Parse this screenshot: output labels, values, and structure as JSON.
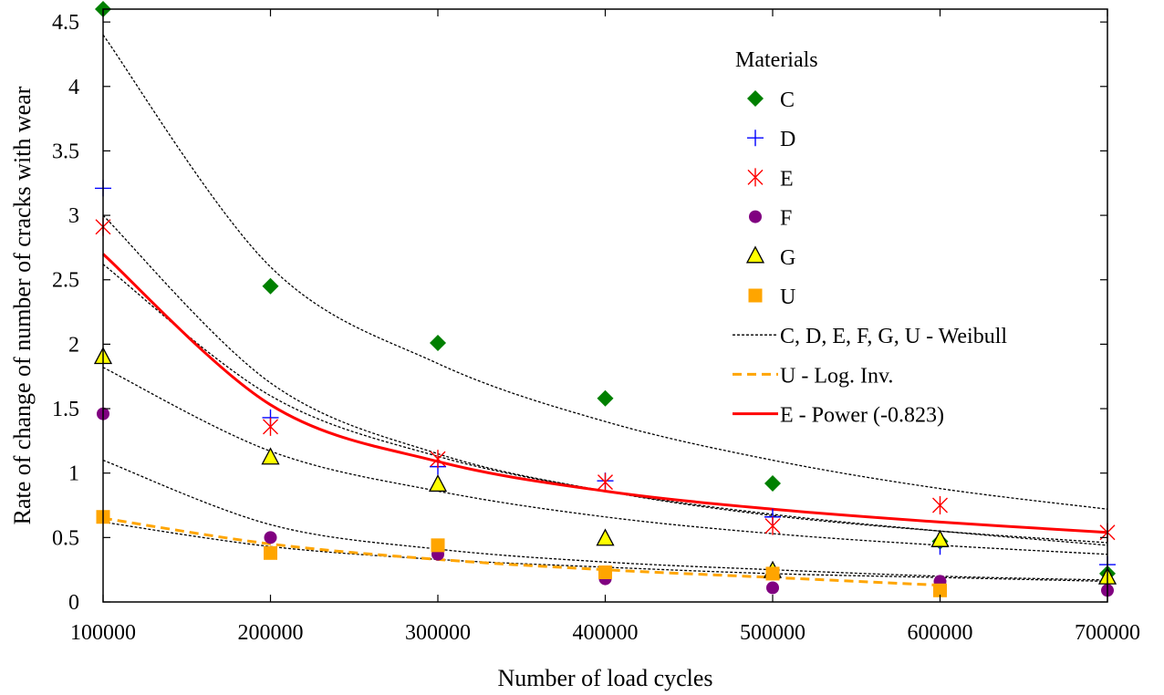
{
  "chart_data": {
    "type": "scatter",
    "title": "",
    "xlabel": "Number of load cycles",
    "ylabel": "Rate of change of number of cracks with wear",
    "xlim": [
      100000,
      700000
    ],
    "ylim": [
      0,
      4.6
    ],
    "xticks": [
      100000,
      200000,
      300000,
      400000,
      500000,
      600000,
      700000
    ],
    "xtick_labels": [
      "100000",
      "200000",
      "300000",
      "400000",
      "500000",
      "600000",
      "700000"
    ],
    "yticks": [
      0,
      0.5,
      1,
      1.5,
      2,
      2.5,
      3,
      3.5,
      4,
      4.5
    ],
    "ytick_labels": [
      "0",
      "0.5",
      "1",
      "1.5",
      "2",
      "2.5",
      "3",
      "3.5",
      "4",
      "4.5"
    ],
    "grid": false,
    "legend_title": "Materials",
    "legend_position": "top-right",
    "x": [
      100000,
      200000,
      300000,
      400000,
      500000,
      600000,
      700000
    ],
    "series": [
      {
        "name": "C",
        "marker": "diamond",
        "color": "#008000",
        "values": [
          4.6,
          2.45,
          2.01,
          1.58,
          0.92,
          0.47,
          0.22
        ]
      },
      {
        "name": "D",
        "marker": "plus",
        "color": "#0000ff",
        "values": [
          3.21,
          1.43,
          1.05,
          0.94,
          0.66,
          0.43,
          0.29
        ]
      },
      {
        "name": "E",
        "marker": "star",
        "color": "#ff0000",
        "values": [
          2.91,
          1.36,
          1.11,
          0.93,
          0.59,
          0.75,
          0.54
        ]
      },
      {
        "name": "F",
        "marker": "circle",
        "color": "#800080",
        "values": [
          1.46,
          0.5,
          0.37,
          0.18,
          0.11,
          0.16,
          0.09
        ]
      },
      {
        "name": "G",
        "marker": "triangle",
        "color": "#ffff00",
        "stroke": "#000000",
        "values": [
          1.9,
          1.12,
          0.91,
          0.49,
          0.24,
          0.48,
          0.19
        ]
      },
      {
        "name": "U",
        "marker": "square",
        "color": "#ffa500",
        "x": [
          100000,
          200000,
          300000,
          400000,
          500000,
          600000
        ],
        "values": [
          0.66,
          0.38,
          0.44,
          0.23,
          0.22,
          0.09
        ]
      }
    ],
    "fits": [
      {
        "name": "C, D, E, F, G, U - Weibull",
        "style": "dotted",
        "color": "#000000",
        "legend": true,
        "curves": [
          {
            "x": [
              100000,
              200000,
              300000,
              400000,
              500000,
              600000,
              700000
            ],
            "values": [
              4.4,
              2.6,
              1.85,
              1.4,
              1.1,
              0.88,
              0.72
            ]
          },
          {
            "x": [
              100000,
              200000,
              300000,
              400000,
              500000,
              600000,
              700000
            ],
            "values": [
              3.0,
              1.7,
              1.15,
              0.86,
              0.67,
              0.55,
              0.46
            ]
          },
          {
            "x": [
              100000,
              200000,
              300000,
              400000,
              500000,
              600000,
              700000
            ],
            "values": [
              2.62,
              1.6,
              1.13,
              0.86,
              0.68,
              0.55,
              0.44
            ]
          },
          {
            "x": [
              100000,
              200000,
              300000,
              400000,
              500000,
              600000,
              700000
            ],
            "values": [
              1.82,
              1.17,
              0.86,
              0.66,
              0.53,
              0.44,
              0.37
            ]
          },
          {
            "x": [
              100000,
              200000,
              300000,
              400000,
              500000,
              600000,
              700000
            ],
            "values": [
              1.1,
              0.6,
              0.41,
              0.31,
              0.25,
              0.2,
              0.17
            ]
          },
          {
            "x": [
              100000,
              200000,
              300000,
              400000,
              500000,
              600000,
              700000
            ],
            "values": [
              0.62,
              0.43,
              0.33,
              0.27,
              0.22,
              0.19,
              0.16
            ]
          }
        ]
      },
      {
        "name": "U - Log. Inv.",
        "style": "dashed",
        "color": "#ffa500",
        "legend": true,
        "curves": [
          {
            "x": [
              100000,
              200000,
              300000,
              400000,
              500000,
              600000
            ],
            "values": [
              0.65,
              0.45,
              0.33,
              0.25,
              0.19,
              0.13
            ]
          }
        ]
      },
      {
        "name": "E - Power (-0.823)",
        "style": "solid",
        "color": "#ff0000",
        "legend": true,
        "curves": [
          {
            "x": [
              100000,
              200000,
              300000,
              400000,
              500000,
              600000,
              700000
            ],
            "values": [
              2.7,
              1.53,
              1.09,
              0.86,
              0.72,
              0.62,
              0.54
            ]
          }
        ]
      }
    ]
  }
}
